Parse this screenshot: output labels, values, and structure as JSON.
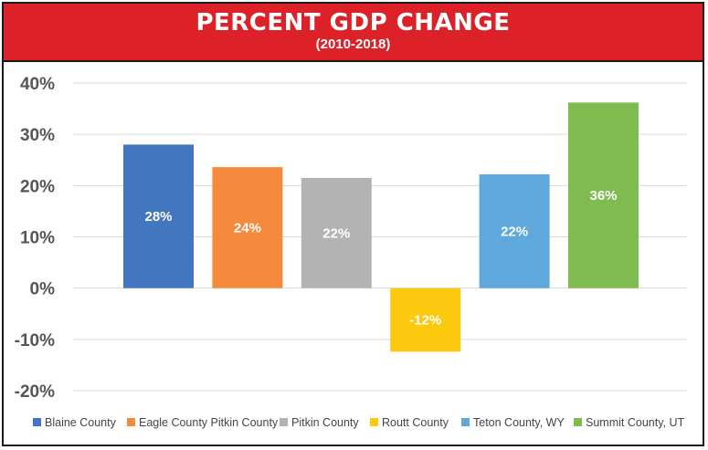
{
  "header": {
    "title": "PERCENT GDP CHANGE",
    "subtitle": "(2010-2018)"
  },
  "colors": {
    "banner": "#dc2128",
    "grid": "#d9d9d9",
    "axis_text": "#555555"
  },
  "chart_data": {
    "type": "bar",
    "title": "PERCENT GDP CHANGE",
    "subtitle": "(2010-2018)",
    "xlabel": "",
    "ylabel": "",
    "ylim": [
      -20,
      40
    ],
    "yticks": [
      40,
      30,
      20,
      10,
      0,
      -10,
      -20
    ],
    "ytick_labels": [
      "40%",
      "30%",
      "20%",
      "10%",
      "0%",
      "-10%",
      "-20%"
    ],
    "grid": true,
    "legend_position": "bottom",
    "series": [
      {
        "name": "Blaine County",
        "value": 28,
        "label": "28%",
        "color": "#4276be"
      },
      {
        "name": "Eagle County Pitkin County",
        "value": 23.6,
        "label": "24%",
        "color": "#f58a3c"
      },
      {
        "name": "Pitkin County",
        "value": 21.5,
        "label": "22%",
        "color": "#b3b3b3"
      },
      {
        "name": "Routt County",
        "value": -12.4,
        "label": "-12%",
        "color": "#fcc90f"
      },
      {
        "name": "Teton County, WY",
        "value": 22.2,
        "label": "22%",
        "color": "#5ea8dd"
      },
      {
        "name": "Summit County, UT",
        "value": 36.2,
        "label": "36%",
        "color": "#7fbb4e"
      }
    ]
  }
}
